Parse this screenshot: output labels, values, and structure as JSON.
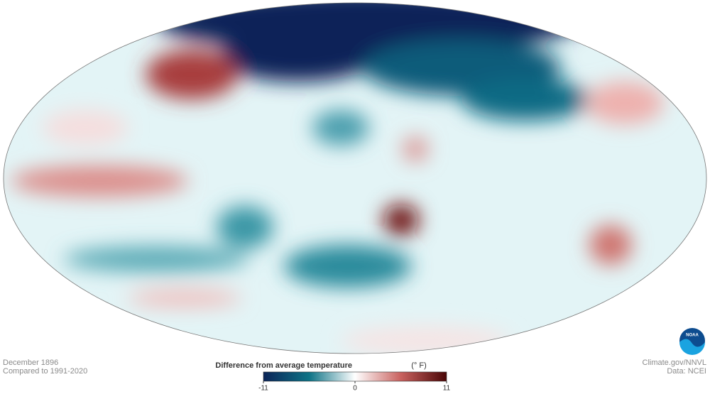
{
  "caption": {
    "date": "December 1896",
    "baseline": "Compared to 1991-2020"
  },
  "legend": {
    "title": "Difference from average temperature",
    "unit": "(° F)",
    "range": [
      -11,
      11
    ],
    "ticks": [
      -11,
      0,
      11
    ],
    "colors": [
      "#0b2458",
      "#0e7386",
      "#ffffff",
      "#c9625f",
      "#4a0606"
    ]
  },
  "credits": {
    "source": "Climate.gov/NNVL",
    "data": "Data: NCEI",
    "logo": "NOAA"
  }
}
